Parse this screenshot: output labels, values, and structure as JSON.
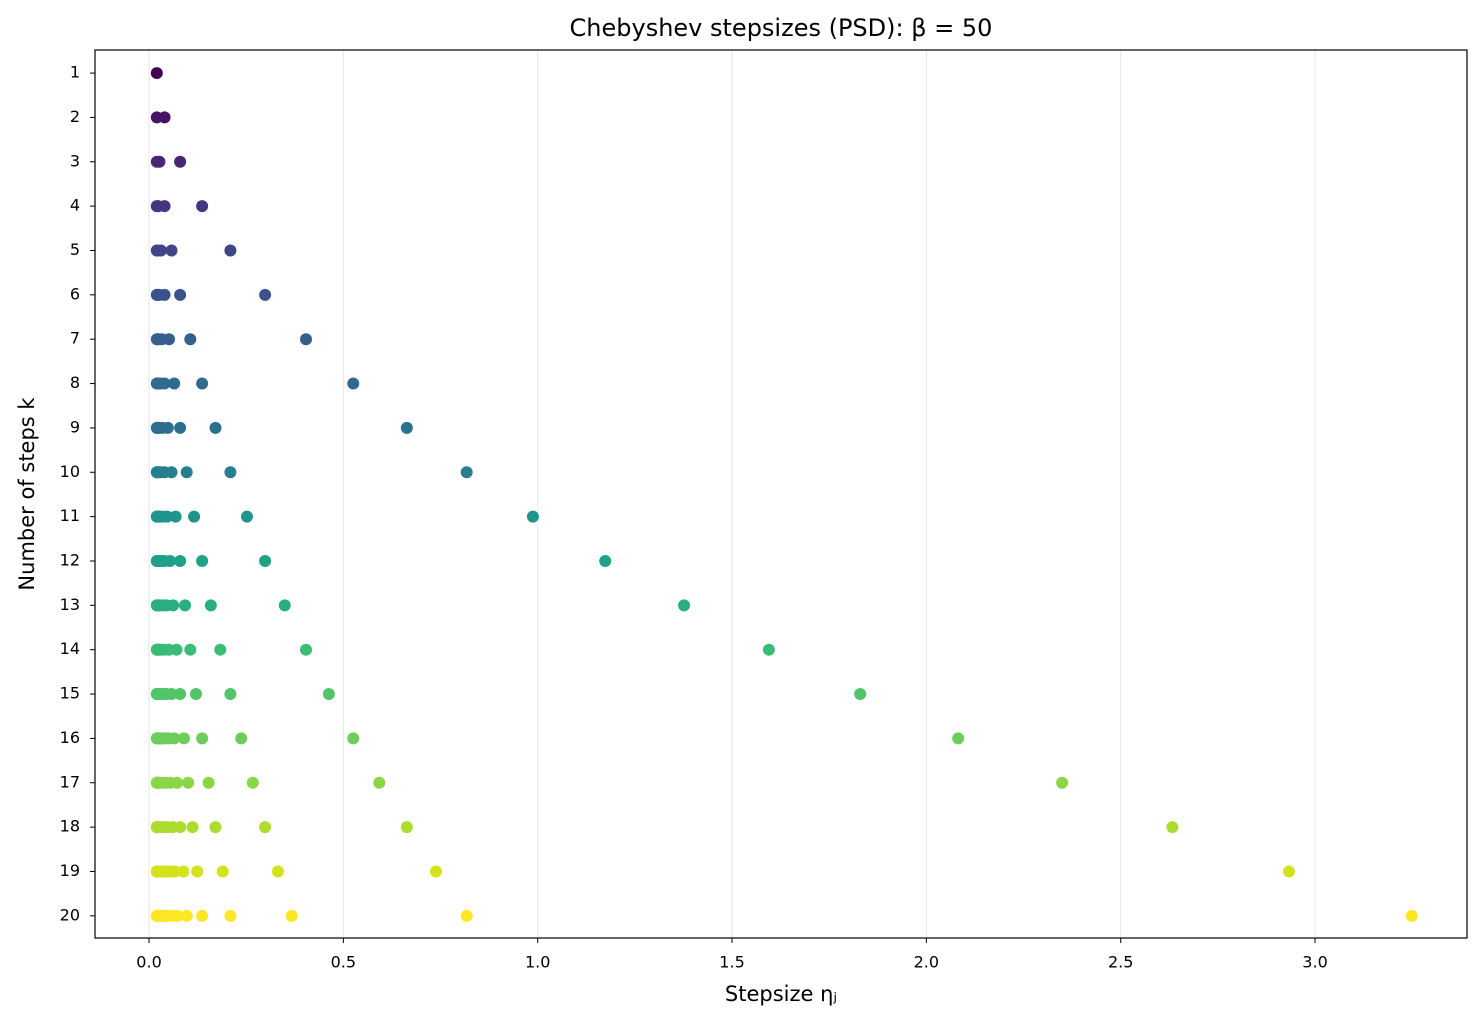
{
  "chart_data": {
    "type": "scatter",
    "title": "Chebyshev stepsizes (PSD): β = 50",
    "x_label": "Stepsize ηⱼ",
    "y_label": "Number of steps k",
    "xlim": [
      -0.139,
      3.391
    ],
    "ylim": [
      20.5,
      0.48
    ],
    "xticks": [
      {
        "value": 0,
        "label": "0.0"
      },
      0.5,
      {
        "value": 1,
        "label": "1.0"
      },
      1.5,
      {
        "value": 2,
        "label": "2.0"
      },
      2.5,
      {
        "value": 3,
        "label": "3.0"
      }
    ],
    "yticks": [
      1,
      2,
      3,
      4,
      5,
      6,
      7,
      8,
      9,
      10,
      11,
      12,
      13,
      14,
      15,
      16,
      17,
      18,
      19,
      20
    ],
    "grid": "x",
    "series": [
      {
        "color": "#440154",
        "y": 1,
        "x": [
          0.02
        ]
      },
      {
        "color": "#471365",
        "y": 2,
        "x": [
          0.04,
          0.02
        ]
      },
      {
        "color": "#482475",
        "y": 3,
        "x": [
          0.08,
          0.0267,
          0.02
        ]
      },
      {
        "color": "#463480",
        "y": 4,
        "x": [
          0.1366,
          0.04,
          0.0234,
          0.02
        ]
      },
      {
        "color": "#414487",
        "y": 5,
        "x": [
          0.2094,
          0.0579,
          0.0306,
          0.0221,
          0.02
        ]
      },
      {
        "color": "#3b528b",
        "y": 6,
        "x": [
          0.2986,
          0.08,
          0.04,
          0.0267,
          0.0214,
          0.02
        ]
      },
      {
        "color": "#355f8d",
        "y": 7,
        "x": [
          0.4039,
          0.1062,
          0.0515,
          0.0327,
          0.0246,
          0.021,
          0.02
        ]
      },
      {
        "color": "#306a8e",
        "y": 8,
        "x": [
          0.5255,
          0.1366,
          0.0648,
          0.04,
          0.0289,
          0.0234,
          0.0208,
          0.02
        ]
      },
      {
        "color": "#2d708e",
        "y": 9,
        "x": [
          0.6633,
          0.171,
          0.08,
          0.0484,
          0.0341,
          0.0267,
          0.0227,
          0.0206,
          0.02
        ]
      },
      {
        "color": "#277f8e",
        "y": 10,
        "x": [
          0.8173,
          0.2094,
          0.097,
          0.0579,
          0.04,
          0.0306,
          0.0252,
          0.0221,
          0.0205,
          0.02
        ]
      },
      {
        "color": "#1f958b",
        "y": 11,
        "x": [
          0.9877,
          0.252,
          0.1159,
          0.0684,
          0.0466,
          0.035,
          0.0283,
          0.0242,
          0.0217,
          0.0204,
          0.02
        ]
      },
      {
        "color": "#1fa088",
        "y": 12,
        "x": [
          1.1737,
          0.2986,
          0.1366,
          0.08,
          0.054,
          0.04,
          0.0318,
          0.0267,
          0.0234,
          0.0214,
          0.0203,
          0.02
        ]
      },
      {
        "color": "#28ae80",
        "y": 13,
        "x": [
          1.3765,
          0.3492,
          0.1591,
          0.0926,
          0.062,
          0.0455,
          0.0357,
          0.0295,
          0.0255,
          0.0229,
          0.0212,
          0.0203,
          0.02
        ]
      },
      {
        "color": "#3bbb75",
        "y": 14,
        "x": [
          1.5949,
          0.4039,
          0.1833,
          0.1062,
          0.0707,
          0.0515,
          0.04,
          0.0327,
          0.0279,
          0.0246,
          0.0224,
          0.021,
          0.0203,
          0.02
        ]
      },
      {
        "color": "#52c569",
        "y": 15,
        "x": [
          1.8298,
          0.4627,
          0.2094,
          0.1209,
          0.08,
          0.0579,
          0.0447,
          0.0362,
          0.0306,
          0.0267,
          0.024,
          0.0221,
          0.0209,
          0.0202,
          0.02
        ]
      },
      {
        "color": "#6ccd5a",
        "y": 16,
        "x": [
          2.0818,
          0.5255,
          0.2373,
          0.1366,
          0.09,
          0.0648,
          0.0497,
          0.04,
          0.0335,
          0.0289,
          0.0257,
          0.0234,
          0.0218,
          0.0208,
          0.0202,
          0.02
        ]
      },
      {
        "color": "#8bd646",
        "y": 17,
        "x": [
          2.3493,
          0.5924,
          0.2671,
          0.1533,
          0.1007,
          0.0722,
          0.0551,
          0.0441,
          0.0366,
          0.0314,
          0.0277,
          0.025,
          0.023,
          0.0216,
          0.0207,
          0.0202,
          0.02
        ]
      },
      {
        "color": "#addc30",
        "y": 18,
        "x": [
          2.633,
          0.6633,
          0.2986,
          0.171,
          0.112,
          0.08,
          0.0608,
          0.0484,
          0.04,
          0.0341,
          0.0298,
          0.0267,
          0.0243,
          0.0227,
          0.0214,
          0.0206,
          0.0202,
          0.02
        ]
      },
      {
        "color": "#d2e21b",
        "y": 19,
        "x": [
          2.933,
          0.7383,
          0.3318,
          0.1897,
          0.124,
          0.0883,
          0.0669,
          0.053,
          0.0436,
          0.0369,
          0.0321,
          0.0285,
          0.0259,
          0.0238,
          0.0224,
          0.0213,
          0.0206,
          0.0201,
          0.02
        ]
      },
      {
        "color": "#fde725",
        "y": 20,
        "x": [
          3.249,
          0.8173,
          0.367,
          0.2094,
          0.1366,
          0.097,
          0.0733,
          0.0579,
          0.0474,
          0.04,
          0.0346,
          0.0306,
          0.0275,
          0.0252,
          0.0234,
          0.0221,
          0.0212,
          0.0205,
          0.0201,
          0.02
        ]
      }
    ]
  }
}
